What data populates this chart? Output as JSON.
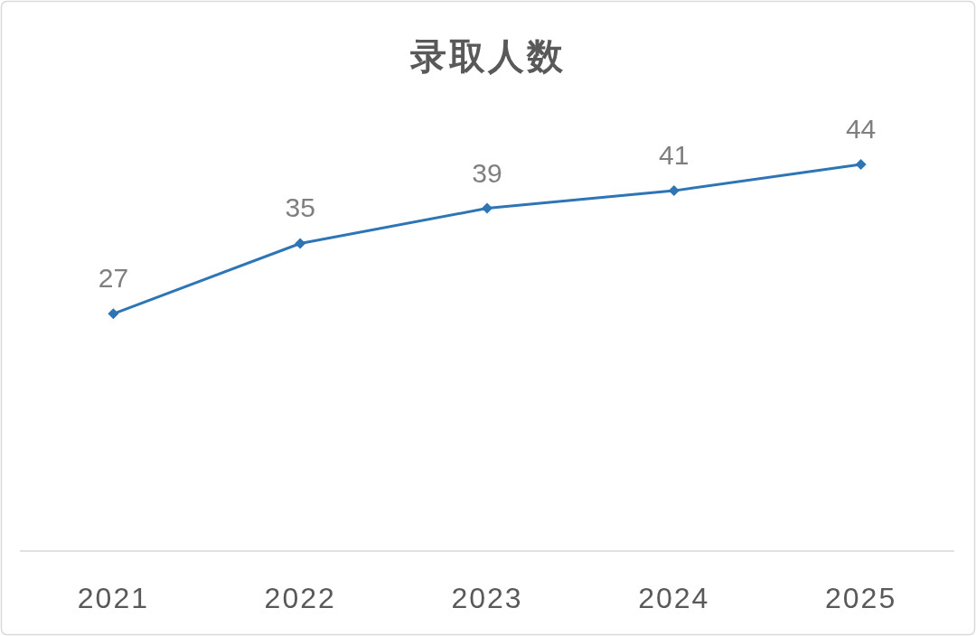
{
  "chart_data": {
    "type": "line",
    "title": "录取人数",
    "categories": [
      "2021",
      "2022",
      "2023",
      "2024",
      "2025"
    ],
    "values": [
      27,
      35,
      39,
      41,
      44
    ],
    "color": "#2e75b6",
    "marker": "diamond",
    "data_labels": true
  }
}
